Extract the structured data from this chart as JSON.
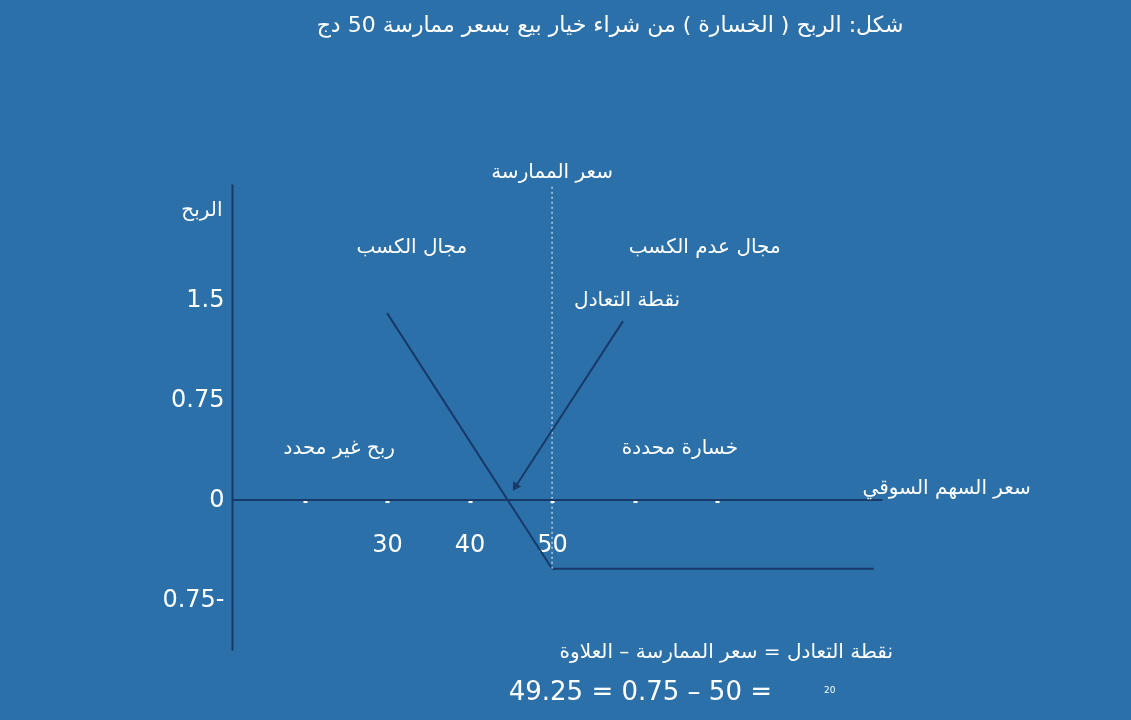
{
  "chart_data": {
    "type": "line",
    "title": "شكل: الربح ( الخسارة ) من شراء خيار بيع  بسعر ممارسة 50 دج",
    "xlabel": "سعر السهم السوقي",
    "ylabel": "الربح",
    "x": [
      30,
      50,
      89
    ],
    "series": [
      {
        "color": "#173a6b",
        "values": [
          1.4,
          -0.52,
          -0.52
        ]
      }
    ],
    "xlim": [
      11.2,
      90
    ],
    "xticks": [
      {
        "value": 20,
        "label": null
      },
      30,
      40,
      50,
      {
        "value": 60,
        "label": null
      },
      {
        "value": 70,
        "label": null
      }
    ],
    "ylim": [
      -1.13,
      2.37
    ],
    "yticks": [
      {
        "value": -0.75,
        "label": "0.75-"
      },
      0,
      0.75,
      1.5
    ],
    "ref_lines": [
      {
        "axis": "x",
        "value": 50,
        "label": "سعر الممارسة",
        "color": "#ffffff",
        "line_style": "dotted"
      }
    ],
    "annotations": [
      "نقطة التعادل",
      "مجال الكسب",
      "مجال عدم الكسب",
      "ربح غير محدد",
      "خسارة محددة",
      "نقطة التعادل = سعر الممارسة – العلاوة",
      "49.25 = 0.75 – 50 =",
      "20"
    ],
    "grid": false
  }
}
